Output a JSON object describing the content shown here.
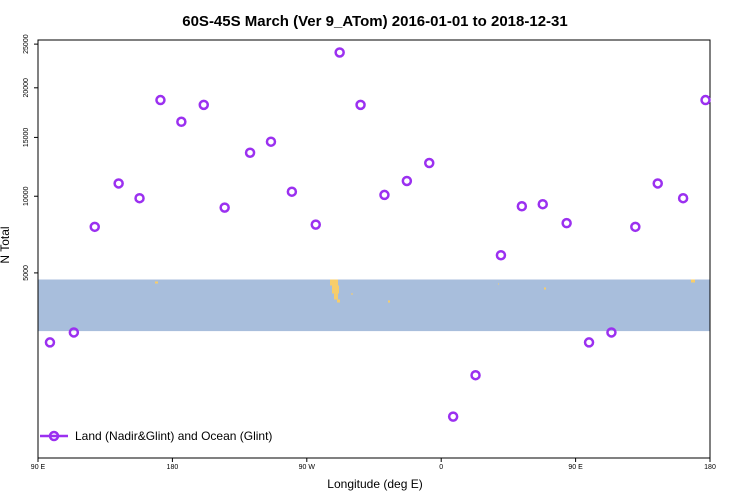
{
  "chart_data": {
    "type": "scatter",
    "title": "60S-45S March (Ver 9_ATom)   2016-01-01 to 2018-12-31",
    "xlabel": "Longitude (deg E)",
    "ylabel": "N Total",
    "x_ticks": [
      {
        "value": 90,
        "label": "90 E"
      },
      {
        "value": 180,
        "label": "180"
      },
      {
        "value": 270,
        "label": "90 W"
      },
      {
        "value": 360,
        "label": "0"
      },
      {
        "value": 450,
        "label": "90 E"
      },
      {
        "value": 540,
        "label": "180"
      }
    ],
    "y_ticks": [
      5000,
      10000,
      15000,
      20000,
      25000
    ],
    "xlim": [
      90,
      540
    ],
    "ylim": [
      0,
      25500
    ],
    "series": [
      {
        "name": "Land (Nadir&Glint) and Ocean (Glint)",
        "color": "#9B30F0",
        "marker": "open-circle",
        "x": [
          98,
          114,
          128,
          144,
          158,
          172,
          186,
          201,
          215,
          232,
          246,
          260,
          276,
          292,
          306,
          322,
          337,
          352,
          368,
          383,
          400,
          414,
          428,
          444,
          459,
          474,
          490,
          505,
          522,
          537
        ],
        "y": [
          1950,
          2300,
          7800,
          11000,
          9850,
          18700,
          16500,
          18200,
          9150,
          13600,
          14600,
          10350,
          7950,
          24000,
          18200,
          10100,
          11200,
          12700,
          250,
          1000,
          6000,
          9250,
          9400,
          8050,
          1950,
          2300,
          7800,
          11000,
          9850,
          18700
        ]
      }
    ],
    "map_band": {
      "y_top": 4650,
      "y_bottom": 2350,
      "ocean_color": "#A8BEDC",
      "land_color": "#F7CD6B"
    },
    "legend": {
      "position": "bottom-left"
    },
    "grid": false
  }
}
